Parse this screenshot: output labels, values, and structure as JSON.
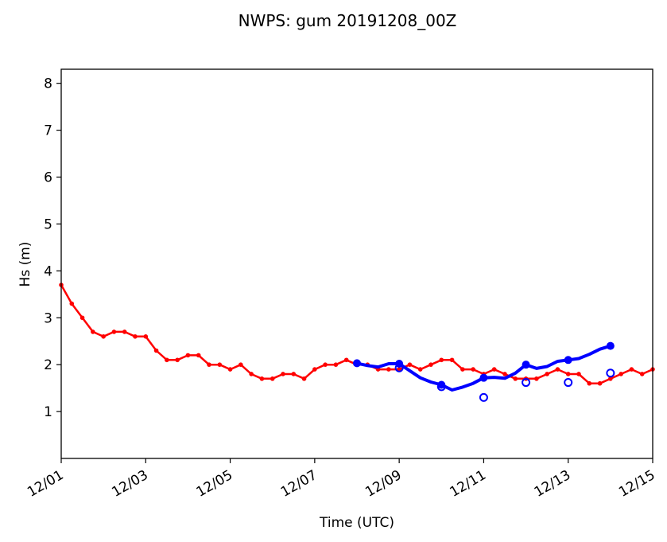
{
  "chart_data": {
    "type": "line",
    "title": "NWPS: gum 20191208_00Z",
    "xlabel": "Time (UTC)",
    "ylabel": "Hs (m)",
    "xlim": [
      "2019-12-01",
      "2019-12-15"
    ],
    "ylim": [
      0,
      8.3
    ],
    "x_ticks": [
      "12/01",
      "12/03",
      "12/05",
      "12/07",
      "12/09",
      "12/11",
      "12/13",
      "12/15"
    ],
    "y_ticks": [
      1,
      2,
      3,
      4,
      5,
      6,
      7,
      8
    ],
    "grid": false,
    "series": [
      {
        "color": "#ff0000",
        "style": "line-with-markers",
        "x": [
          "2019-12-01T00:00",
          "2019-12-01T06:00",
          "2019-12-01T12:00",
          "2019-12-01T18:00",
          "2019-12-02T00:00",
          "2019-12-02T06:00",
          "2019-12-02T12:00",
          "2019-12-02T18:00",
          "2019-12-03T00:00",
          "2019-12-03T06:00",
          "2019-12-03T12:00",
          "2019-12-03T18:00",
          "2019-12-04T00:00",
          "2019-12-04T06:00",
          "2019-12-04T12:00",
          "2019-12-04T18:00",
          "2019-12-05T00:00",
          "2019-12-05T06:00",
          "2019-12-05T12:00",
          "2019-12-05T18:00",
          "2019-12-06T00:00",
          "2019-12-06T06:00",
          "2019-12-06T12:00",
          "2019-12-06T18:00",
          "2019-12-07T00:00",
          "2019-12-07T06:00",
          "2019-12-07T12:00",
          "2019-12-07T18:00",
          "2019-12-08T00:00",
          "2019-12-08T06:00",
          "2019-12-08T12:00",
          "2019-12-08T18:00",
          "2019-12-09T00:00",
          "2019-12-09T06:00",
          "2019-12-09T12:00",
          "2019-12-09T18:00",
          "2019-12-10T00:00",
          "2019-12-10T06:00",
          "2019-12-10T12:00",
          "2019-12-10T18:00",
          "2019-12-11T00:00",
          "2019-12-11T06:00",
          "2019-12-11T12:00",
          "2019-12-11T18:00",
          "2019-12-12T00:00",
          "2019-12-12T06:00",
          "2019-12-12T12:00",
          "2019-12-12T18:00",
          "2019-12-13T00:00",
          "2019-12-13T06:00",
          "2019-12-13T12:00",
          "2019-12-13T18:00",
          "2019-12-14T00:00",
          "2019-12-14T06:00",
          "2019-12-14T12:00",
          "2019-12-14T18:00",
          "2019-12-15T00:00"
        ],
        "values": [
          3.7,
          3.3,
          3.0,
          2.7,
          2.6,
          2.7,
          2.7,
          2.6,
          2.6,
          2.3,
          2.1,
          2.1,
          2.2,
          2.2,
          2.0,
          2.0,
          1.9,
          2.0,
          1.8,
          1.7,
          1.7,
          1.8,
          1.8,
          1.7,
          1.9,
          2.0,
          2.0,
          2.1,
          2.0,
          2.0,
          1.9,
          1.9,
          1.9,
          2.0,
          1.9,
          2.0,
          2.1,
          2.1,
          1.9,
          1.9,
          1.8,
          1.9,
          1.8,
          1.7,
          1.7,
          1.7,
          1.8,
          1.9,
          1.8,
          1.8,
          1.6,
          1.6,
          1.7,
          1.8,
          1.9,
          1.8,
          1.9
        ]
      },
      {
        "color": "#0000ff",
        "style": "line",
        "x": [
          "2019-12-08T00:00",
          "2019-12-08T06:00",
          "2019-12-08T12:00",
          "2019-12-08T18:00",
          "2019-12-09T00:00",
          "2019-12-09T06:00",
          "2019-12-09T12:00",
          "2019-12-09T18:00",
          "2019-12-10T00:00",
          "2019-12-10T06:00",
          "2019-12-10T12:00",
          "2019-12-10T18:00",
          "2019-12-11T00:00",
          "2019-12-11T06:00",
          "2019-12-11T12:00",
          "2019-12-11T18:00",
          "2019-12-12T00:00",
          "2019-12-12T06:00",
          "2019-12-12T12:00",
          "2019-12-12T18:00",
          "2019-12-13T00:00",
          "2019-12-13T06:00",
          "2019-12-13T12:00",
          "2019-12-13T18:00",
          "2019-12-14T00:00"
        ],
        "values": [
          2.03,
          1.98,
          1.95,
          2.02,
          2.02,
          1.87,
          1.72,
          1.63,
          1.57,
          1.46,
          1.52,
          1.6,
          1.72,
          1.73,
          1.71,
          1.82,
          2.0,
          1.92,
          1.96,
          2.07,
          2.1,
          2.13,
          2.22,
          2.33,
          2.4
        ]
      },
      {
        "color": "#0000ff",
        "style": "open-circles",
        "x": [
          "2019-12-09T00:00",
          "2019-12-10T00:00",
          "2019-12-11T00:00",
          "2019-12-12T00:00",
          "2019-12-13T00:00",
          "2019-12-14T00:00"
        ],
        "values": [
          1.93,
          1.53,
          1.3,
          1.62,
          1.62,
          1.82
        ]
      }
    ]
  },
  "colors": {
    "axes": "#000000",
    "background": "#ffffff"
  }
}
